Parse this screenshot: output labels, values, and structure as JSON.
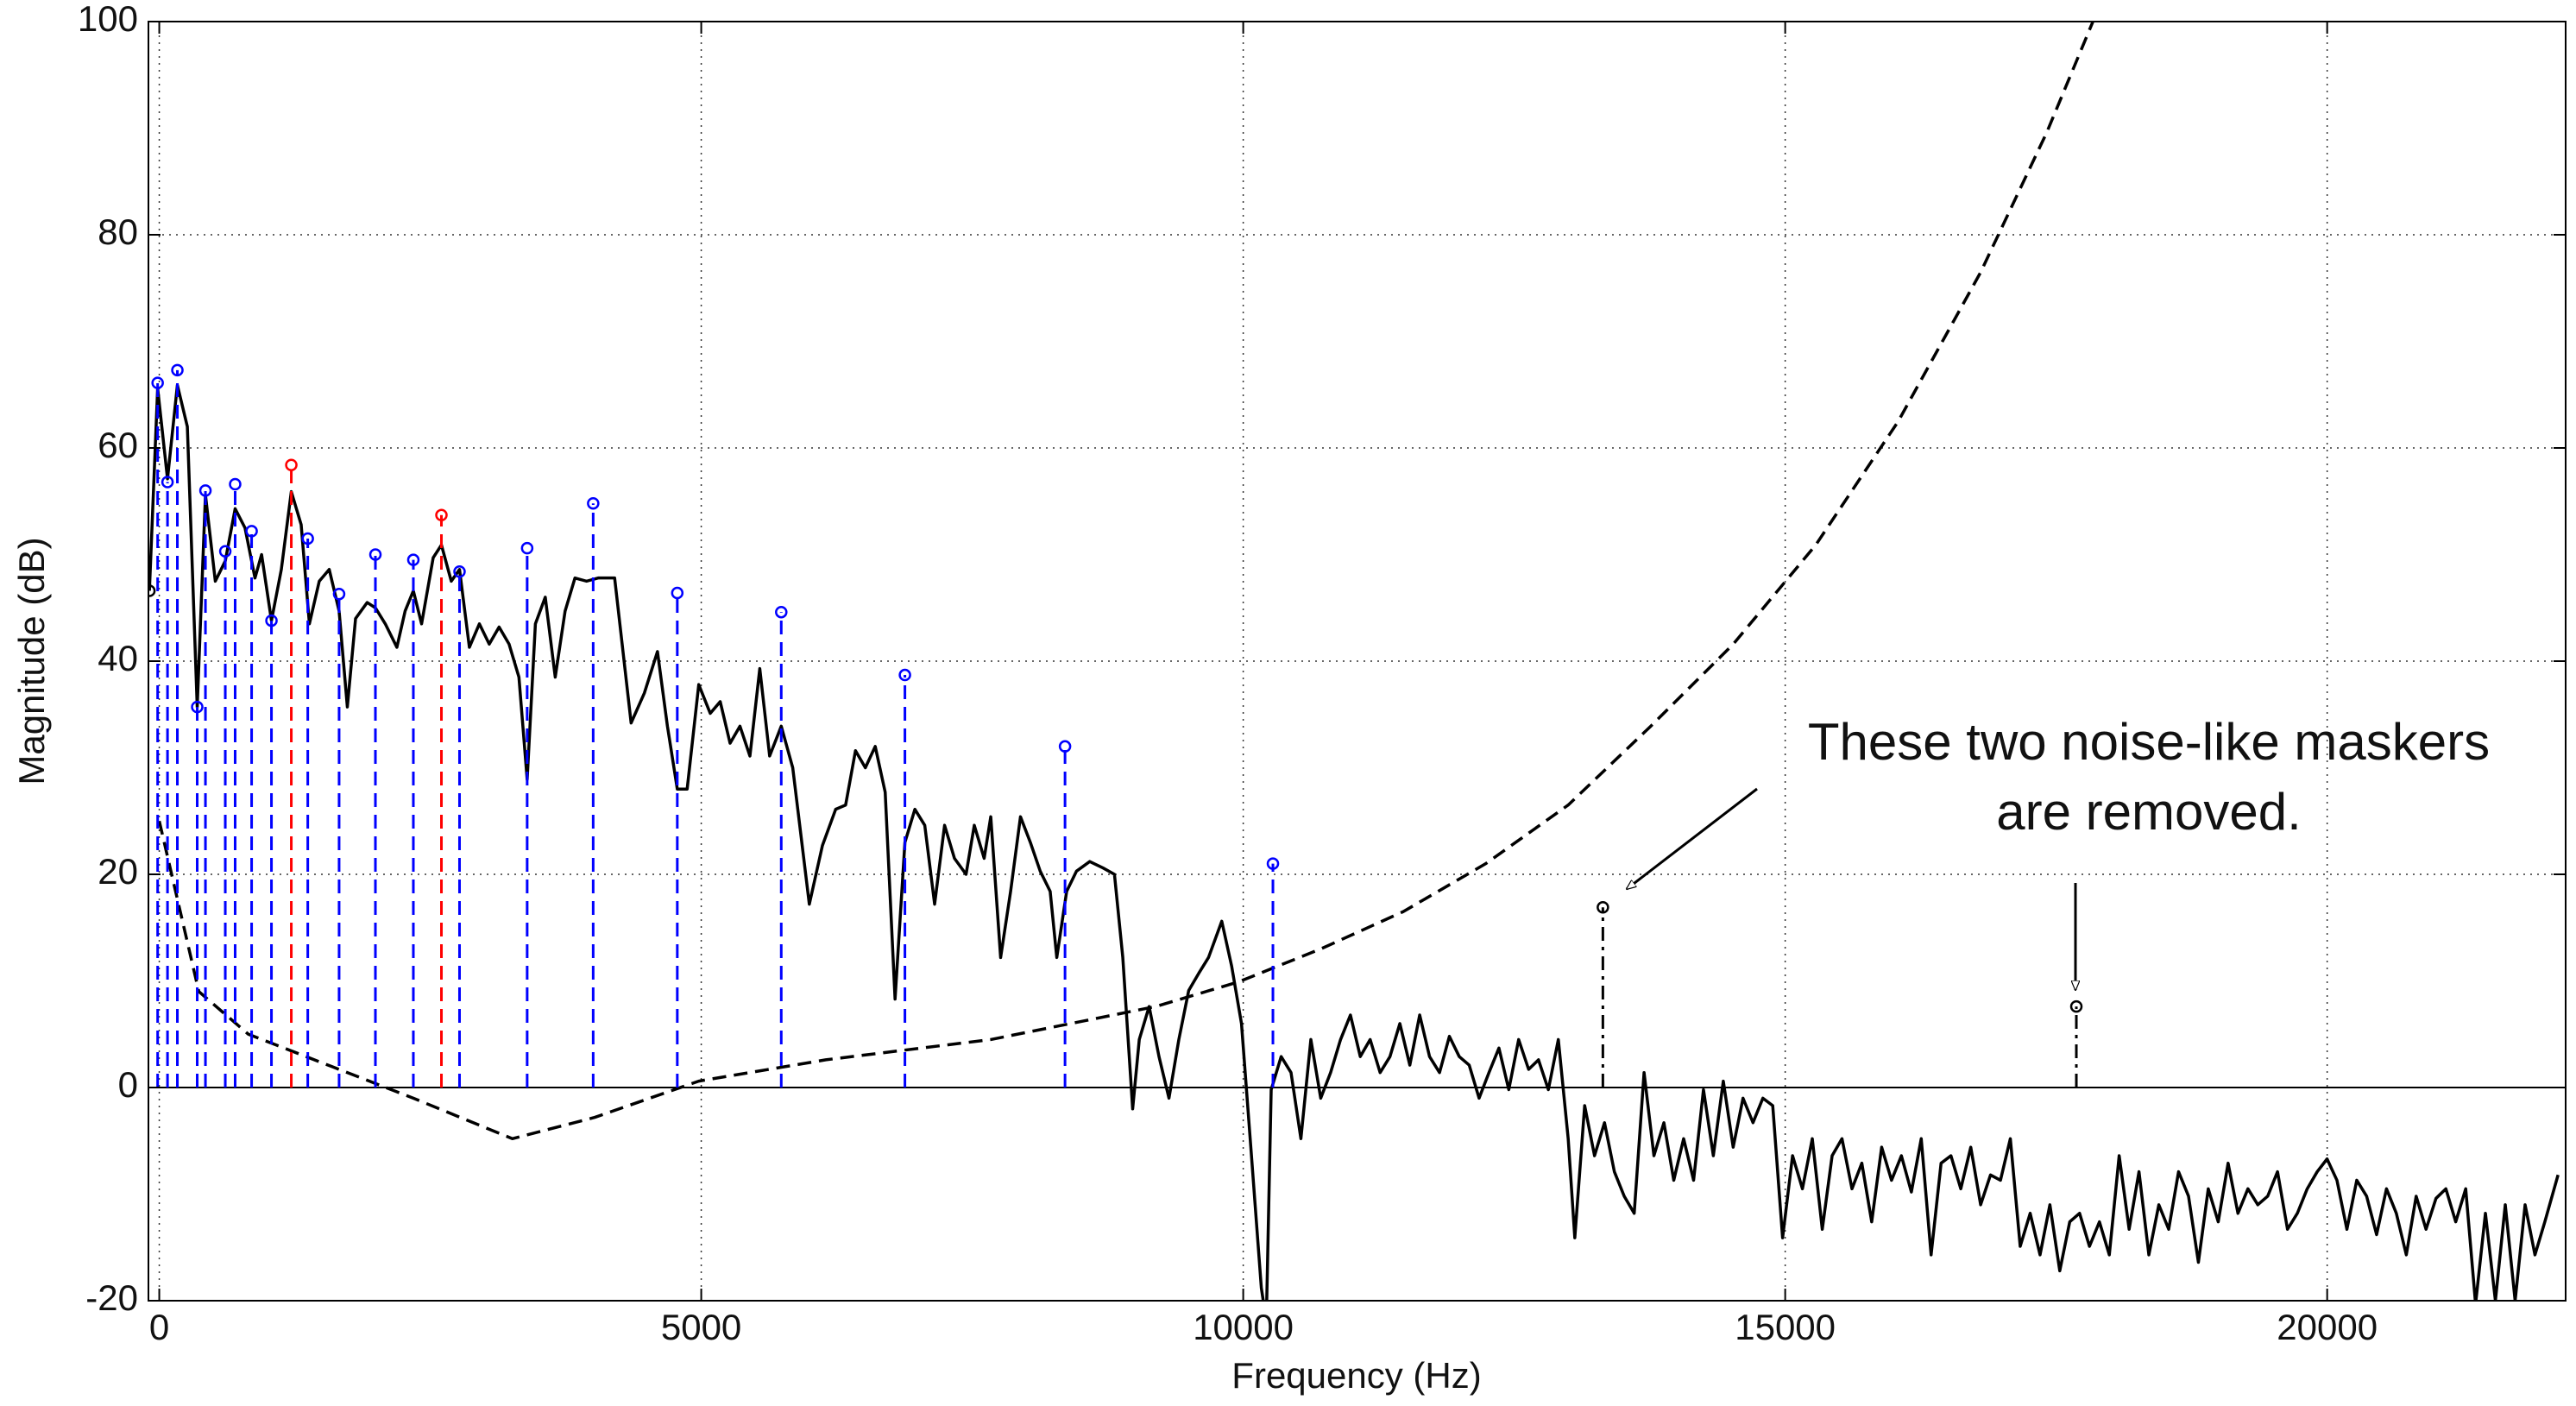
{
  "chart_data": {
    "type": "line",
    "xlabel": "Frequency (Hz)",
    "ylabel": "Magnitude (dB)",
    "xlim": [
      -100,
      22200
    ],
    "ylim": [
      -20,
      100
    ],
    "xticks": [
      0,
      5000,
      10000,
      15000,
      20000
    ],
    "yticks": [
      -20,
      0,
      20,
      40,
      60,
      80,
      100
    ],
    "grid": true,
    "zero_line": true,
    "annotations": [
      "These two noise-like maskers",
      "are removed."
    ],
    "series": [
      {
        "kind": "line",
        "color": "#000000",
        "dash": "solid",
        "x": [
          -91,
          -15,
          76,
          167,
          259,
          350,
          426,
          517,
          609,
          700,
          791,
          883,
          944,
          1035,
          1126,
          1218,
          1309,
          1385,
          1476,
          1568,
          1659,
          1735,
          1811,
          1918,
          1994,
          2085,
          2192,
          2268,
          2344,
          2420,
          2527,
          2603,
          2694,
          2770,
          2861,
          2953,
          3044,
          3135,
          3227,
          3318,
          3394,
          3470,
          3561,
          3653,
          3744,
          3835,
          3942,
          4049,
          4201,
          4353,
          4475,
          4596,
          4688,
          4779,
          4870,
          4977,
          5083,
          5175,
          5266,
          5357,
          5449,
          5540,
          5631,
          5738,
          5844,
          5997,
          6118,
          6240,
          6332,
          6423,
          6514,
          6605,
          6697,
          6788,
          6879,
          6971,
          7062,
          7153,
          7245,
          7336,
          7443,
          7519,
          7610,
          7671,
          7762,
          7854,
          7945,
          8036,
          8127,
          8219,
          8280,
          8371,
          8462,
          8584,
          8706,
          8812,
          8889,
          8980,
          9041,
          9132,
          9223,
          9315,
          9406,
          9497,
          9589,
          9680,
          9802,
          9893,
          9984,
          10076,
          10167,
          10213,
          10258,
          10350,
          10441,
          10532,
          10624,
          10715,
          10806,
          10898,
          10989,
          11080,
          11171,
          11263,
          11354,
          11445,
          11537,
          11628,
          11719,
          11811,
          11902,
          11993,
          12085,
          12176,
          12267,
          12359,
          12450,
          12541,
          12633,
          12724,
          12815,
          12907,
          12998,
          13059,
          13150,
          13241,
          13333,
          13424,
          13515,
          13607,
          13698,
          13789,
          13881,
          13972,
          14063,
          14155,
          14246,
          14337,
          14429,
          14520,
          14611,
          14703,
          14794,
          14885,
          14976,
          15068,
          15159,
          15250,
          15342,
          15433,
          15524,
          15616,
          15707,
          15798,
          15890,
          15981,
          16072,
          16164,
          16255,
          16346,
          16438,
          16529,
          16620,
          16712,
          16803,
          16894,
          16986,
          17077,
          17168,
          17260,
          17351,
          17442,
          17533,
          17625,
          17716,
          17807,
          17899,
          17990,
          18081,
          18173,
          18264,
          18355,
          18447,
          18538,
          18629,
          18721,
          18812,
          18903,
          18995,
          19086,
          19177,
          19269,
          19360,
          19451,
          19542,
          19634,
          19725,
          19816,
          19908,
          19999,
          20090,
          20182,
          20273,
          20364,
          20456,
          20547,
          20638,
          20730,
          20821,
          20912,
          21004,
          21095,
          21186,
          21278,
          21369,
          21460,
          21552,
          21643,
          21734,
          21826,
          21917,
          22008,
          22130
        ],
        "values": [
          46.6,
          65.6,
          57.1,
          65.9,
          62,
          35.7,
          55.6,
          47.5,
          49.4,
          54.3,
          52.5,
          47.8,
          50,
          43.8,
          48.6,
          55.9,
          52.8,
          43.5,
          47.5,
          48.6,
          44.7,
          35.7,
          44,
          45.5,
          45,
          43.5,
          41.3,
          44.7,
          46.6,
          43.5,
          49.7,
          50.9,
          47.5,
          48.6,
          41.3,
          43.5,
          41.6,
          43.2,
          41.6,
          38.5,
          28.9,
          43.5,
          46,
          38.5,
          44.7,
          47.8,
          47.5,
          47.8,
          47.8,
          34.2,
          37,
          40.9,
          33.9,
          28,
          28,
          37.8,
          35.1,
          36.2,
          32.3,
          33.9,
          31.1,
          39.3,
          31.1,
          33.9,
          30,
          17.2,
          22.7,
          26.1,
          26.5,
          31.6,
          30,
          32,
          27.7,
          8.3,
          23,
          26.1,
          24.6,
          17.2,
          24.6,
          21.5,
          20,
          24.6,
          21.5,
          25.4,
          12.2,
          18.4,
          25.4,
          23,
          20.3,
          18.4,
          12.2,
          18.4,
          20.3,
          21.2,
          20.6,
          20,
          12.2,
          -2,
          4.5,
          7.6,
          2.9,
          -1,
          4.5,
          9.1,
          10.7,
          12.2,
          15.6,
          11.4,
          6,
          -6.4,
          -18.8,
          -21.9,
          -0.2,
          2.9,
          1.4,
          -4.8,
          4.5,
          -1,
          1.4,
          4.5,
          6.8,
          2.9,
          4.5,
          1.4,
          2.9,
          6,
          2.1,
          6.8,
          2.9,
          1.4,
          4.8,
          2.9,
          2.1,
          -1,
          1.4,
          3.7,
          -0.2,
          4.5,
          1.7,
          2.6,
          -0.2,
          4.5,
          -4.8,
          -14.1,
          -1.7,
          -6.4,
          -3.3,
          -7.9,
          -10.2,
          -11.8,
          1.4,
          -6.4,
          -3.3,
          -8.7,
          -4.8,
          -8.7,
          -0.2,
          -6.4,
          0.6,
          -5.6,
          -1,
          -3.3,
          -1,
          -1.7,
          -14.1,
          -6.4,
          -9.5,
          -4.8,
          -13.3,
          -6.4,
          -4.8,
          -9.5,
          -7.1,
          -12.6,
          -5.6,
          -8.7,
          -6.4,
          -9.8,
          -4.8,
          -15.7,
          -7.1,
          -6.4,
          -9.5,
          -5.6,
          -11,
          -8.2,
          -8.7,
          -4.8,
          -14.9,
          -11.8,
          -15.7,
          -11,
          -17.2,
          -12.6,
          -11.8,
          -14.9,
          -12.6,
          -15.7,
          -6.4,
          -13.3,
          -7.9,
          -15.7,
          -11,
          -13.3,
          -7.9,
          -10.2,
          -16.4,
          -9.5,
          -12.6,
          -7.1,
          -11.8,
          -9.5,
          -11,
          -10.2,
          -7.9,
          -13.3,
          -11.8,
          -9.5,
          -7.9,
          -6.7,
          -8.7,
          -13.3,
          -8.7,
          -10.2,
          -13.8,
          -9.5,
          -11.8,
          -15.7,
          -10.2,
          -13.3,
          -10.4,
          -9.5,
          -12.6,
          -9.5,
          -20.3,
          -11.8,
          -20,
          -11,
          -20,
          -11,
          -15.7,
          -12.6,
          -8.2
        ]
      },
      {
        "kind": "line",
        "color": "#000000",
        "dash": "dashed",
        "x": [
          0,
          365,
          822,
          1583,
          2344,
          3257,
          4018,
          4977,
          6149,
          7671,
          9193,
          9954,
          10715,
          11476,
          12237,
          12998,
          13760,
          14521,
          15282,
          16043,
          16804,
          17413,
          17839
        ],
        "values": [
          25,
          9,
          5,
          2,
          -1,
          -4.8,
          -2.8,
          0.6,
          2.6,
          4.5,
          7.6,
          9.9,
          13,
          16.5,
          21,
          26.5,
          33.9,
          41.6,
          50.9,
          62.5,
          76.5,
          89.6,
          100
        ]
      },
      {
        "kind": "stem",
        "color": "#0000ff",
        "dash": "dashed",
        "x": [
          -15,
          76,
          167,
          350,
          426,
          609,
          700,
          852,
          1035,
          1370,
          1659,
          1994,
          2344,
          2770,
          3394,
          4003,
          4779,
          5738,
          6879,
          8356,
          10274
        ],
        "values": [
          66.1,
          56.8,
          67.3,
          35.7,
          56,
          50.3,
          56.6,
          52.2,
          43.8,
          51.5,
          46.3,
          50,
          49.5,
          48.4,
          50.6,
          54.8,
          46.4,
          44.6,
          38.7,
          32,
          21
        ]
      },
      {
        "kind": "stem",
        "color": "#ff0000",
        "dash": "dashed",
        "x": [
          1218,
          2603
        ],
        "values": [
          58.4,
          53.7
        ]
      },
      {
        "kind": "stem",
        "color": "#000000",
        "dash": "dashdot",
        "x": [
          13318,
          17686
        ],
        "values": [
          16.9,
          7.6
        ]
      },
      {
        "kind": "marker",
        "color": "#000000",
        "x": [
          -91
        ],
        "values": [
          46.6
        ]
      }
    ]
  }
}
